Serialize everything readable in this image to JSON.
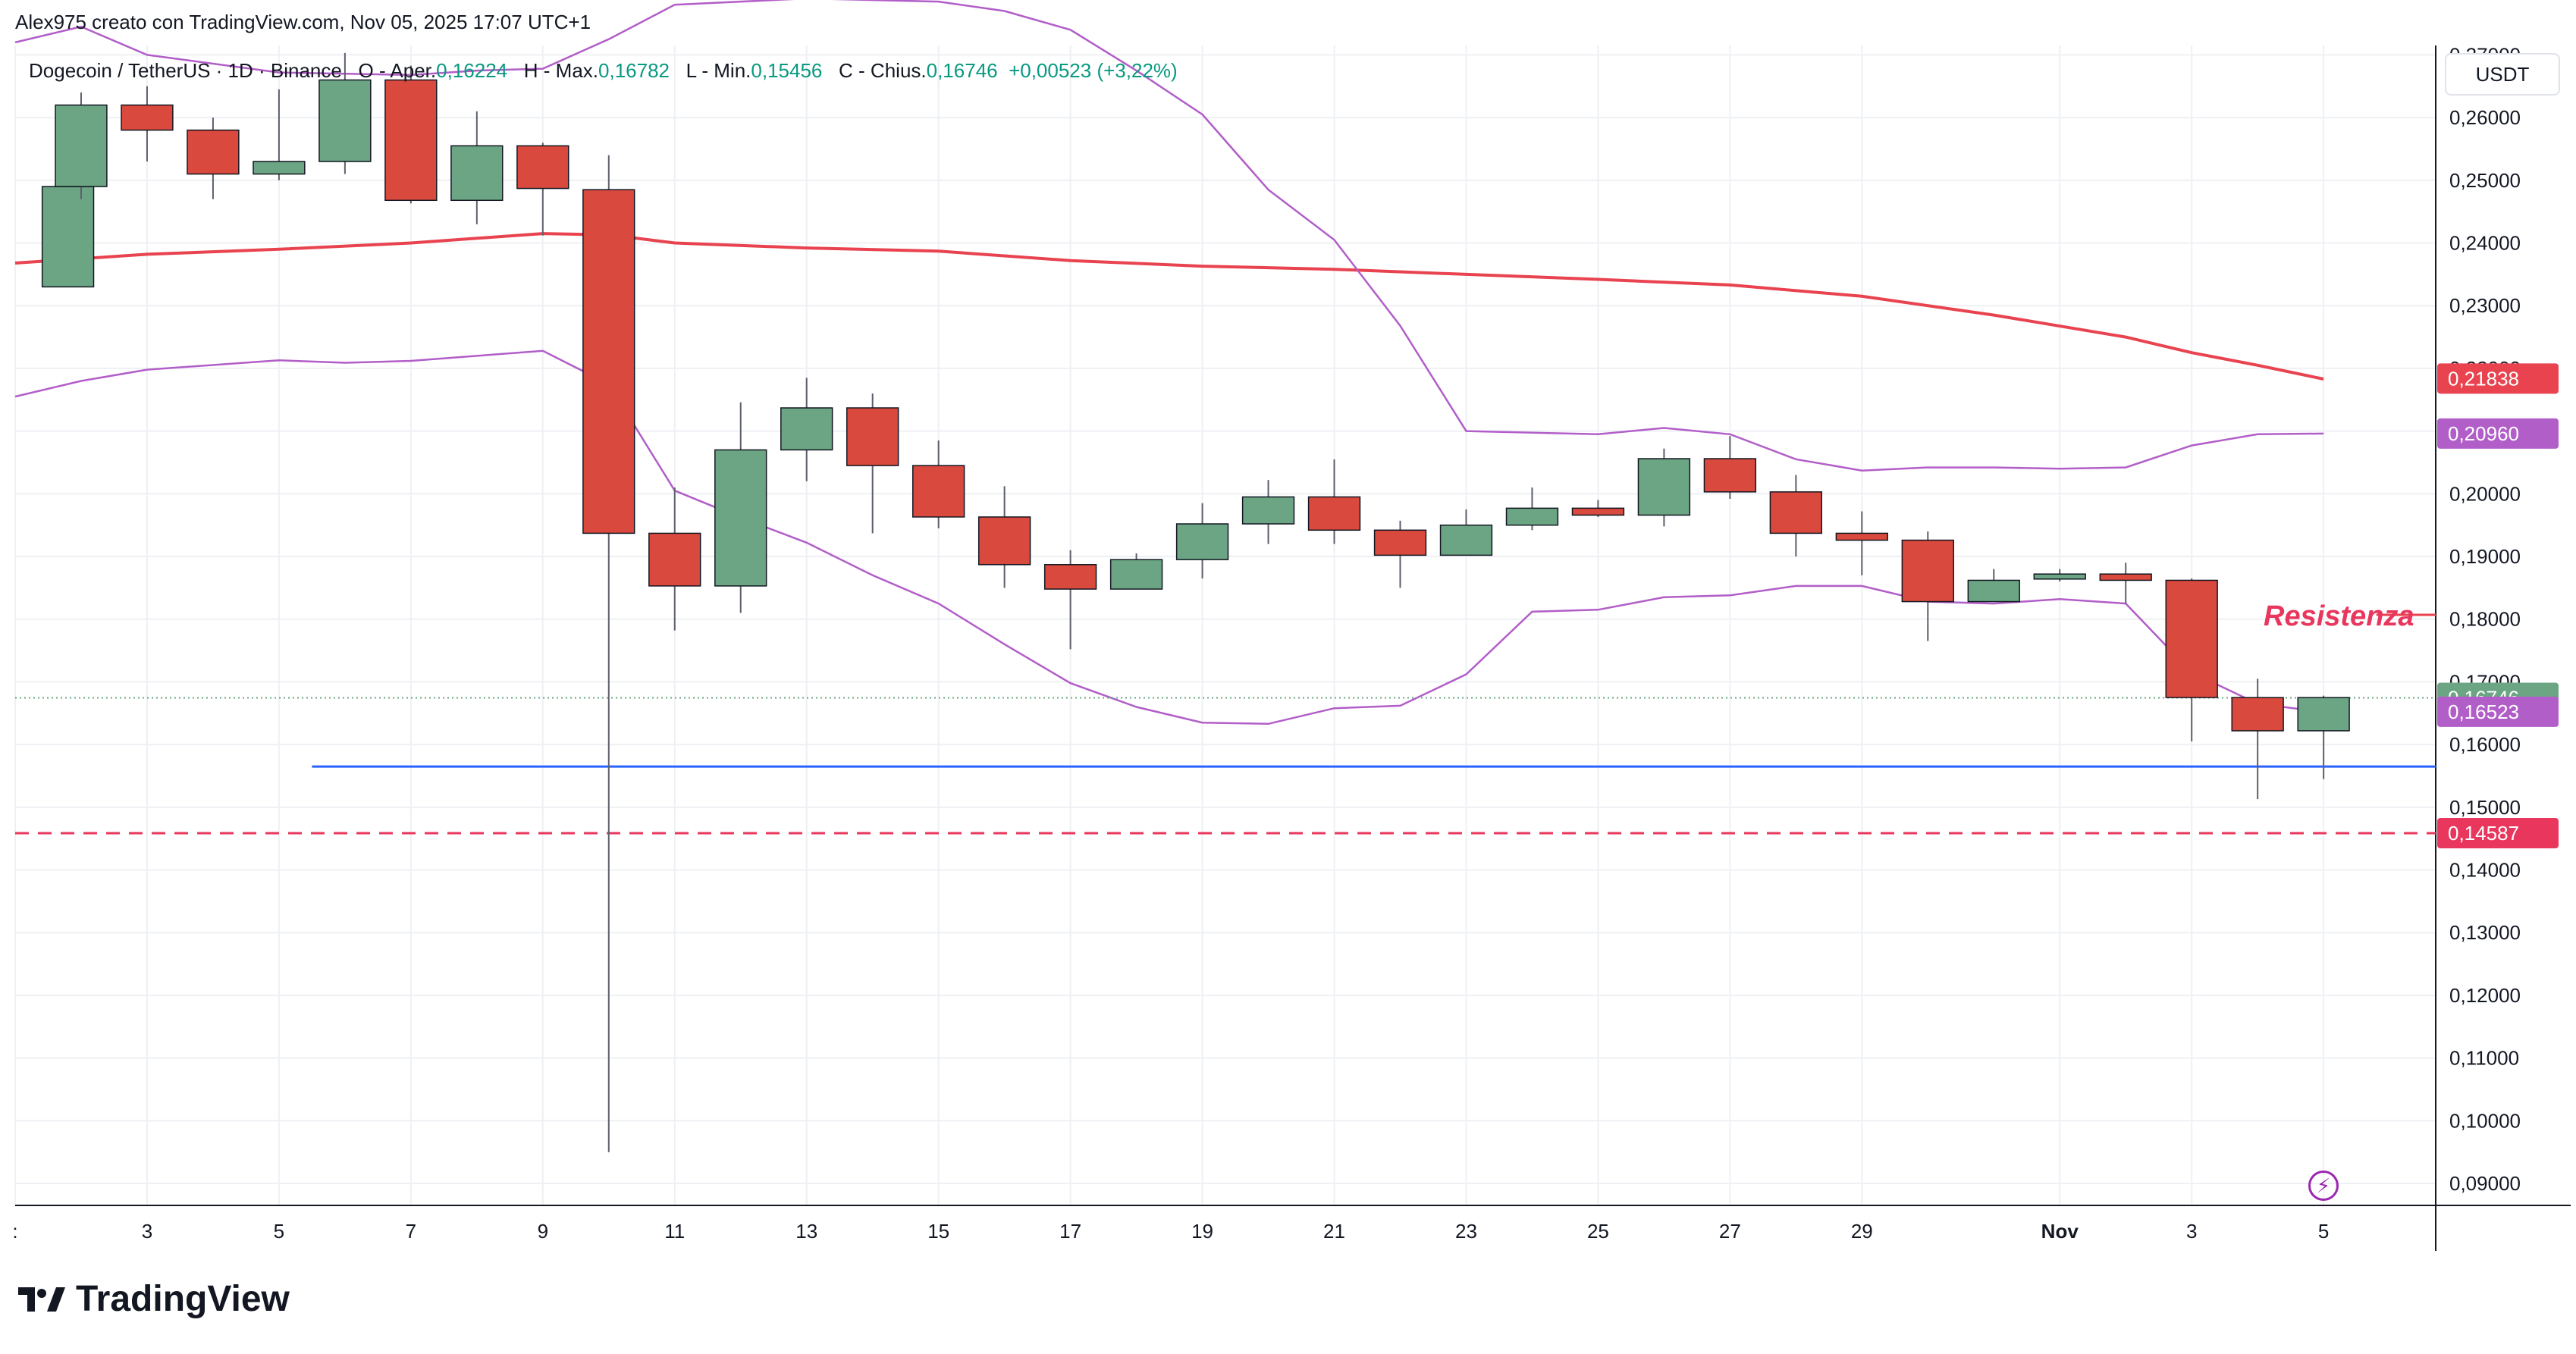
{
  "header": {
    "attribution": "Alex975 creato con TradingView.com, Nov 05, 2025 17:07 UTC+1"
  },
  "legend": {
    "symbol": "Dogecoin / TetherUS · 1D · Binance",
    "open_label": "O - Aper.",
    "open": "0,16224",
    "high_label": "H - Max.",
    "high": "0,16782",
    "low_label": "L - Min.",
    "low": "0,15456",
    "close_label": "C - Chius.",
    "close": "0,16746",
    "change": "+0,00523 (+3,22%)"
  },
  "currency": "USDT",
  "brand": {
    "name": "TradingView"
  },
  "annotation": {
    "text": "Resistenza",
    "color": "#e8365d"
  },
  "colors": {
    "up": "#6ba583",
    "down": "#d9493d",
    "ma": "#e8434f",
    "bands": "#b25ec8",
    "support": "#2962ff",
    "dashed": "#e8365d",
    "grid": "#eef0f4"
  },
  "chart_data": {
    "type": "candlestick",
    "yaxis": {
      "ticks": [
        "0,27000",
        "0,26000",
        "0,25000",
        "0,24000",
        "0,23000",
        "0,22000",
        "0,21000",
        "0,20000",
        "0,19000",
        "0,18000",
        "0,17000",
        "0,16000",
        "0,15000",
        "0,14000",
        "0,13000",
        "0,12000",
        "0,11000",
        "0,10000",
        "0,09000"
      ],
      "ylim": [
        0.0865,
        0.2715
      ]
    },
    "xaxis": {
      "tick_labels": [
        ":",
        "3",
        "5",
        "7",
        "9",
        "11",
        "13",
        "15",
        "17",
        "19",
        "21",
        "23",
        "25",
        "27",
        "29",
        "Nov",
        "3",
        "5"
      ],
      "tick_days": [
        1,
        3,
        5,
        7,
        9,
        11,
        13,
        15,
        17,
        19,
        21,
        23,
        25,
        27,
        29,
        32,
        34,
        36
      ],
      "xlim": [
        1,
        37.7
      ]
    },
    "candles": [
      {
        "day": 1.8,
        "o": 0.233,
        "h": 0.249,
        "l": 0.233,
        "c": 0.249
      },
      {
        "day": 2,
        "o": 0.249,
        "h": 0.264,
        "l": 0.247,
        "c": 0.262
      },
      {
        "day": 3,
        "o": 0.262,
        "h": 0.265,
        "l": 0.253,
        "c": 0.258
      },
      {
        "day": 4,
        "o": 0.258,
        "h": 0.26,
        "l": 0.247,
        "c": 0.251
      },
      {
        "day": 5,
        "o": 0.251,
        "h": 0.2645,
        "l": 0.25,
        "c": 0.253
      },
      {
        "day": 6,
        "o": 0.253,
        "h": 0.2703,
        "l": 0.251,
        "c": 0.266
      },
      {
        "day": 7,
        "o": 0.266,
        "h": 0.2683,
        "l": 0.2463,
        "c": 0.2468
      },
      {
        "day": 8,
        "o": 0.2468,
        "h": 0.261,
        "l": 0.243,
        "c": 0.2555
      },
      {
        "day": 9,
        "o": 0.2555,
        "h": 0.256,
        "l": 0.2412,
        "c": 0.2487
      },
      {
        "day": 10,
        "o": 0.2485,
        "h": 0.254,
        "l": 0.095,
        "c": 0.1937
      },
      {
        "day": 11,
        "o": 0.1937,
        "h": 0.201,
        "l": 0.1782,
        "c": 0.1853
      },
      {
        "day": 12,
        "o": 0.1853,
        "h": 0.2146,
        "l": 0.181,
        "c": 0.207
      },
      {
        "day": 13,
        "o": 0.207,
        "h": 0.2185,
        "l": 0.202,
        "c": 0.2137
      },
      {
        "day": 14,
        "o": 0.2137,
        "h": 0.216,
        "l": 0.1937,
        "c": 0.2045
      },
      {
        "day": 15,
        "o": 0.2045,
        "h": 0.2085,
        "l": 0.1945,
        "c": 0.1963
      },
      {
        "day": 16,
        "o": 0.1963,
        "h": 0.2012,
        "l": 0.185,
        "c": 0.1887
      },
      {
        "day": 17,
        "o": 0.1887,
        "h": 0.191,
        "l": 0.1752,
        "c": 0.1848
      },
      {
        "day": 18,
        "o": 0.1848,
        "h": 0.1905,
        "l": 0.1848,
        "c": 0.1895
      },
      {
        "day": 19,
        "o": 0.1895,
        "h": 0.1985,
        "l": 0.1865,
        "c": 0.1952
      },
      {
        "day": 20,
        "o": 0.1952,
        "h": 0.2022,
        "l": 0.192,
        "c": 0.1995
      },
      {
        "day": 21,
        "o": 0.1995,
        "h": 0.2055,
        "l": 0.192,
        "c": 0.1942
      },
      {
        "day": 22,
        "o": 0.1942,
        "h": 0.1957,
        "l": 0.185,
        "c": 0.1902
      },
      {
        "day": 23,
        "o": 0.1902,
        "h": 0.1975,
        "l": 0.1902,
        "c": 0.195
      },
      {
        "day": 24,
        "o": 0.195,
        "h": 0.201,
        "l": 0.1942,
        "c": 0.1977
      },
      {
        "day": 25,
        "o": 0.1977,
        "h": 0.199,
        "l": 0.1963,
        "c": 0.1966
      },
      {
        "day": 26,
        "o": 0.1966,
        "h": 0.2072,
        "l": 0.1948,
        "c": 0.2056
      },
      {
        "day": 27,
        "o": 0.2056,
        "h": 0.2092,
        "l": 0.1992,
        "c": 0.2003
      },
      {
        "day": 28,
        "o": 0.2003,
        "h": 0.203,
        "l": 0.19,
        "c": 0.1937
      },
      {
        "day": 29,
        "o": 0.1937,
        "h": 0.1972,
        "l": 0.187,
        "c": 0.1926
      },
      {
        "day": 30,
        "o": 0.1926,
        "h": 0.194,
        "l": 0.1765,
        "c": 0.1828
      },
      {
        "day": 31,
        "o": 0.1828,
        "h": 0.188,
        "l": 0.1828,
        "c": 0.1862
      },
      {
        "day": 32,
        "o": 0.1864,
        "h": 0.188,
        "l": 0.186,
        "c": 0.1872
      },
      {
        "day": 33,
        "o": 0.1872,
        "h": 0.189,
        "l": 0.1825,
        "c": 0.1862
      },
      {
        "day": 34,
        "o": 0.1862,
        "h": 0.1865,
        "l": 0.1605,
        "c": 0.1675
      },
      {
        "day": 35,
        "o": 0.1675,
        "h": 0.1705,
        "l": 0.1513,
        "c": 0.1622
      },
      {
        "day": 36,
        "o": 0.1622,
        "h": 0.1678,
        "l": 0.1545,
        "c": 0.1675
      }
    ],
    "series": [
      {
        "values": [
          [
            1,
            0.2368
          ],
          [
            3,
            0.2382
          ],
          [
            5,
            0.239
          ],
          [
            7,
            0.24
          ],
          [
            9,
            0.2415
          ],
          [
            10,
            0.2413
          ],
          [
            11,
            0.24
          ],
          [
            13,
            0.2392
          ],
          [
            15,
            0.2387
          ],
          [
            17,
            0.2372
          ],
          [
            19,
            0.2363
          ],
          [
            21,
            0.2358
          ],
          [
            23,
            0.235
          ],
          [
            25,
            0.2342
          ],
          [
            27,
            0.2333
          ],
          [
            29,
            0.2315
          ],
          [
            31,
            0.2285
          ],
          [
            33,
            0.225
          ],
          [
            34,
            0.2225
          ],
          [
            35,
            0.2205
          ],
          [
            36,
            0.2183
          ]
        ]
      },
      {
        "values": [
          [
            1,
            0.272
          ],
          [
            2,
            0.2745
          ],
          [
            3,
            0.27
          ],
          [
            5,
            0.2672
          ],
          [
            7,
            0.2668
          ],
          [
            8,
            0.2675
          ],
          [
            9,
            0.2678
          ],
          [
            10,
            0.2725
          ],
          [
            11,
            0.278
          ],
          [
            13,
            0.279
          ],
          [
            15,
            0.2785
          ],
          [
            16,
            0.277
          ],
          [
            17,
            0.274
          ],
          [
            18,
            0.2675
          ],
          [
            19,
            0.2605
          ],
          [
            20,
            0.2485
          ],
          [
            21,
            0.2405
          ],
          [
            22,
            0.2268
          ],
          [
            23,
            0.21
          ],
          [
            25,
            0.2095
          ],
          [
            26,
            0.2105
          ],
          [
            27,
            0.2095
          ],
          [
            28,
            0.2055
          ],
          [
            29,
            0.2037
          ],
          [
            30,
            0.2042
          ],
          [
            31,
            0.2042
          ],
          [
            32,
            0.204
          ],
          [
            33,
            0.2042
          ],
          [
            34,
            0.2077
          ],
          [
            35,
            0.2095
          ],
          [
            36,
            0.2096
          ]
        ]
      },
      {
        "values": [
          [
            1,
            0.2155
          ],
          [
            2,
            0.218
          ],
          [
            3,
            0.2198
          ],
          [
            5,
            0.2213
          ],
          [
            6,
            0.2209
          ],
          [
            7,
            0.2212
          ],
          [
            8,
            0.222
          ],
          [
            9,
            0.2228
          ],
          [
            10,
            0.2175
          ],
          [
            11,
            0.2005
          ],
          [
            12,
            0.1962
          ],
          [
            13,
            0.1922
          ],
          [
            14,
            0.187
          ],
          [
            15,
            0.1825
          ],
          [
            16,
            0.176
          ],
          [
            17,
            0.1698
          ],
          [
            18,
            0.166
          ],
          [
            19,
            0.1635
          ],
          [
            20,
            0.1633
          ],
          [
            21,
            0.1658
          ],
          [
            22,
            0.1662
          ],
          [
            23,
            0.1712
          ],
          [
            24,
            0.1812
          ],
          [
            25,
            0.1815
          ],
          [
            26,
            0.1835
          ],
          [
            27,
            0.1838
          ],
          [
            28,
            0.1853
          ],
          [
            29,
            0.1853
          ],
          [
            30,
            0.1828
          ],
          [
            31,
            0.1825
          ],
          [
            32,
            0.1832
          ],
          [
            33,
            0.1825
          ],
          [
            34,
            0.1715
          ],
          [
            35,
            0.1665
          ],
          [
            36,
            0.1652
          ]
        ]
      }
    ],
    "horizontal_lines": [
      {
        "value": 0.1565,
        "style": "solid",
        "from_day": 5.5
      },
      {
        "value": 0.14587,
        "style": "dashed"
      },
      {
        "value": 0.1807,
        "style": "solid",
        "from_day": 36.8
      }
    ],
    "price_labels": [
      {
        "text": "0,21838",
        "value": 0.21838,
        "color": "#e8434f"
      },
      {
        "text": "0,20960",
        "value": 0.2096,
        "color": "#b25ec8"
      },
      {
        "text": "0,16746",
        "value": 0.16746,
        "color": "#6ba583"
      },
      {
        "text": "0,16523",
        "value": 0.16523,
        "color": "#b25ec8"
      },
      {
        "text": "0,14587",
        "value": 0.14587,
        "color": "#e8365d"
      }
    ],
    "last_price_value": 0.16746
  }
}
